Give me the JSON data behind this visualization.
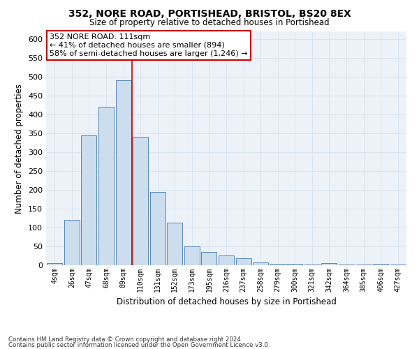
{
  "title1": "352, NORE ROAD, PORTISHEAD, BRISTOL, BS20 8EX",
  "title2": "Size of property relative to detached houses in Portishead",
  "xlabel": "Distribution of detached houses by size in Portishead",
  "ylabel": "Number of detached properties",
  "categories": [
    "4sqm",
    "26sqm",
    "47sqm",
    "68sqm",
    "89sqm",
    "110sqm",
    "131sqm",
    "152sqm",
    "173sqm",
    "195sqm",
    "216sqm",
    "237sqm",
    "258sqm",
    "279sqm",
    "300sqm",
    "321sqm",
    "342sqm",
    "364sqm",
    "385sqm",
    "406sqm",
    "427sqm"
  ],
  "values": [
    5,
    120,
    345,
    420,
    490,
    340,
    195,
    112,
    50,
    35,
    25,
    18,
    8,
    4,
    4,
    2,
    5,
    2,
    2,
    3,
    2
  ],
  "bar_color": "#ccdded",
  "bar_edge_color": "#5588bb",
  "vline_color": "#cc0000",
  "vline_x_index": 5,
  "annotation_text": "352 NORE ROAD: 111sqm\n← 41% of detached houses are smaller (894)\n58% of semi-detached houses are larger (1,246) →",
  "annotation_box_color": "#ffffff",
  "annotation_box_edge_color": "#cc0000",
  "ylim": [
    0,
    620
  ],
  "yticks": [
    0,
    50,
    100,
    150,
    200,
    250,
    300,
    350,
    400,
    450,
    500,
    550,
    600
  ],
  "footer1": "Contains HM Land Registry data © Crown copyright and database right 2024.",
  "footer2": "Contains public sector information licensed under the Open Government Licence v3.0.",
  "grid_color": "#d8e4f0",
  "background_color": "#edf2f9"
}
